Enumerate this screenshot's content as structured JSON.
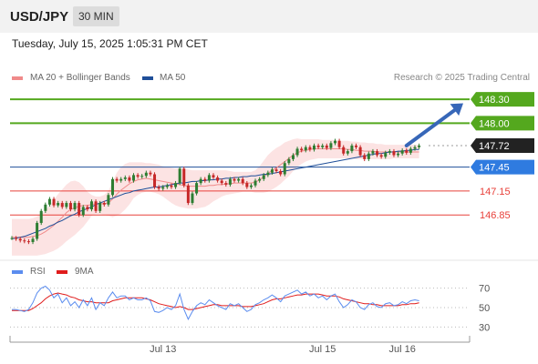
{
  "header": {
    "pair": "USD/JPY",
    "timeframe": "30 MIN"
  },
  "timestamp": "Tuesday, July 15, 2025 1:05:31 PM CET",
  "legend": {
    "ma20": "MA 20 + Bollinger Bands",
    "ma50": "MA 50",
    "credit": "Research © 2025 Trading Central"
  },
  "rsi_legend": {
    "rsi": "RSI",
    "ma9": "9MA"
  },
  "colors": {
    "target": "#54a81e",
    "pivot": "#2f7be0",
    "support": "#e8403a",
    "current": "#222222",
    "ma50": "#1f4f99",
    "ma20": "#f08a8a",
    "band": "#fcdede",
    "up": "#2e7d32",
    "down": "#c62828",
    "rsi": "#5b8def",
    "ma9": "#e01c1c",
    "arrow": "#3767b8"
  },
  "chart_data": [
    {
      "type": "candlestick",
      "y_range": [
        146.35,
        148.45
      ],
      "x_range": [
        0,
        101
      ],
      "x_ticks": [
        {
          "x": 36,
          "label": "Jul 13"
        },
        {
          "x": 74,
          "label": "Jul 15"
        },
        {
          "x": 93,
          "label": "Jul 16"
        }
      ],
      "levels": [
        {
          "value": 148.3,
          "label": "148.30",
          "kind": "target"
        },
        {
          "value": 148.0,
          "label": "148.00",
          "kind": "target"
        },
        {
          "value": 147.72,
          "label": "147.72",
          "kind": "current"
        },
        {
          "value": 147.45,
          "label": "147.45",
          "kind": "pivot"
        },
        {
          "value": 147.15,
          "label": "147.15",
          "kind": "support"
        },
        {
          "value": 146.85,
          "label": "146.85",
          "kind": "support"
        }
      ],
      "close": [
        146.56,
        146.55,
        146.53,
        146.52,
        146.51,
        146.55,
        146.75,
        146.9,
        146.98,
        147.05,
        146.97,
        147.0,
        146.95,
        147.0,
        146.92,
        147.0,
        146.85,
        146.95,
        146.92,
        147.02,
        146.9,
        147.0,
        146.98,
        147.1,
        147.3,
        147.28,
        147.3,
        147.32,
        147.28,
        147.35,
        147.33,
        147.34,
        147.38,
        147.36,
        147.2,
        147.18,
        147.2,
        147.22,
        147.2,
        147.25,
        147.43,
        147.22,
        147.0,
        147.12,
        147.25,
        147.3,
        147.28,
        147.35,
        147.32,
        147.28,
        147.25,
        147.23,
        147.3,
        147.28,
        147.3,
        147.25,
        147.2,
        147.22,
        147.28,
        147.3,
        147.35,
        147.38,
        147.42,
        147.4,
        147.36,
        147.5,
        147.55,
        147.6,
        147.68,
        147.66,
        147.7,
        147.67,
        147.72,
        147.7,
        147.72,
        147.69,
        147.75,
        147.78,
        147.7,
        147.62,
        147.65,
        147.72,
        147.7,
        147.6,
        147.55,
        147.62,
        147.65,
        147.6,
        147.58,
        147.63,
        147.65,
        147.6,
        147.62,
        147.66,
        147.63,
        147.68,
        147.7,
        147.72
      ],
      "bollinger_upper": [
        146.8,
        146.8,
        146.8,
        146.8,
        146.8,
        146.81,
        146.83,
        146.86,
        146.91,
        146.97,
        147.04,
        147.11,
        147.17,
        147.23,
        147.27,
        147.28,
        147.26,
        147.21,
        147.14,
        147.1,
        147.08,
        147.08,
        147.1,
        147.15,
        147.27,
        147.38,
        147.45,
        147.49,
        147.51,
        147.51,
        147.51,
        147.51,
        147.5,
        147.5,
        147.49,
        147.48,
        147.46,
        147.45,
        147.44,
        147.43,
        147.44,
        147.43,
        147.42,
        147.41,
        147.41,
        147.41,
        147.41,
        147.41,
        147.41,
        147.41,
        147.41,
        147.41,
        147.4,
        147.39,
        147.39,
        147.39,
        147.39,
        147.39,
        147.41,
        147.46,
        147.53,
        147.6,
        147.65,
        147.69,
        147.72,
        147.76,
        147.78,
        147.8,
        147.81,
        147.8,
        147.8,
        147.8,
        147.8,
        147.8,
        147.79,
        147.79,
        147.79,
        147.79,
        147.78,
        147.78,
        147.78,
        147.77,
        147.77,
        147.76,
        147.76,
        147.75,
        147.75,
        147.74,
        147.74,
        147.73,
        147.73,
        147.73,
        147.73,
        147.73,
        147.73,
        147.73,
        147.73,
        147.73
      ],
      "bollinger_lower": [
        146.34,
        146.34,
        146.34,
        146.34,
        146.34,
        146.34,
        146.34,
        146.35,
        146.36,
        146.38,
        146.4,
        146.43,
        146.47,
        146.52,
        146.56,
        146.6,
        146.65,
        146.7,
        146.77,
        146.84,
        146.86,
        146.86,
        146.85,
        146.84,
        146.82,
        146.84,
        146.87,
        146.92,
        146.98,
        147.06,
        147.1,
        147.13,
        147.14,
        147.14,
        147.13,
        147.11,
        147.08,
        147.04,
        147.0,
        146.97,
        146.95,
        146.94,
        146.93,
        146.93,
        146.93,
        146.94,
        146.95,
        146.98,
        147.02,
        147.05,
        147.08,
        147.1,
        147.11,
        147.12,
        147.13,
        147.14,
        147.14,
        147.14,
        147.13,
        147.13,
        147.13,
        147.14,
        147.17,
        147.2,
        147.24,
        147.29,
        147.34,
        147.4,
        147.45,
        147.49,
        147.52,
        147.54,
        147.55,
        147.56,
        147.56,
        147.56,
        147.56,
        147.56,
        147.56,
        147.56,
        147.56,
        147.56,
        147.55,
        147.55,
        147.55,
        147.55,
        147.55,
        147.55,
        147.55,
        147.55,
        147.55,
        147.56,
        147.56,
        147.56,
        147.56,
        147.56,
        147.56,
        147.56
      ],
      "ma20": [
        146.57,
        146.57,
        146.57,
        146.57,
        146.57,
        146.58,
        146.59,
        146.61,
        146.64,
        146.68,
        146.72,
        146.77,
        146.82,
        146.88,
        146.92,
        146.94,
        146.96,
        146.97,
        146.97,
        146.98,
        146.99,
        146.99,
        146.99,
        147.0,
        147.05,
        147.11,
        147.16,
        147.2,
        147.24,
        147.27,
        147.29,
        147.3,
        147.31,
        147.3,
        147.29,
        147.28,
        147.27,
        147.26,
        147.25,
        147.24,
        147.23,
        147.22,
        147.21,
        147.21,
        147.21,
        147.21,
        147.21,
        147.22,
        147.22,
        147.23,
        147.23,
        147.24,
        147.24,
        147.25,
        147.25,
        147.25,
        147.25,
        147.25,
        147.26,
        147.29,
        147.33,
        147.37,
        147.41,
        147.44,
        147.48,
        147.52,
        147.56,
        147.6,
        147.63,
        147.65,
        147.66,
        147.67,
        147.68,
        147.68,
        147.68,
        147.68,
        147.68,
        147.68,
        147.68,
        147.68,
        147.67,
        147.67,
        147.66,
        147.66,
        147.65,
        147.65,
        147.65,
        147.64,
        147.64,
        147.64,
        147.64,
        147.64,
        147.64,
        147.64,
        147.64,
        147.64,
        147.64,
        147.64
      ],
      "ma50": [
        146.55,
        146.56,
        146.57,
        146.58,
        146.6,
        146.62,
        146.64,
        146.66,
        146.68,
        146.71,
        146.73,
        146.76,
        146.78,
        146.81,
        146.84,
        146.86,
        146.89,
        146.91,
        146.93,
        146.95,
        146.98,
        147.0,
        147.02,
        147.04,
        147.06,
        147.08,
        147.1,
        147.12,
        147.13,
        147.15,
        147.16,
        147.17,
        147.18,
        147.19,
        147.2,
        147.2,
        147.21,
        147.22,
        147.23,
        147.24,
        147.25,
        147.25,
        147.26,
        147.27,
        147.27,
        147.28,
        147.28,
        147.29,
        147.29,
        147.3,
        147.3,
        147.31,
        147.31,
        147.32,
        147.32,
        147.33,
        147.33,
        147.34,
        147.34,
        147.35,
        147.36,
        147.36,
        147.37,
        147.38,
        147.39,
        147.4,
        147.41,
        147.42,
        147.43,
        147.44,
        147.45,
        147.46,
        147.47,
        147.48,
        147.49,
        147.5,
        147.51,
        147.52,
        147.53,
        147.54,
        147.55,
        147.56,
        147.57,
        147.58,
        147.59,
        147.6,
        147.61,
        147.62,
        147.62,
        147.63,
        147.64,
        147.64,
        147.65,
        147.65,
        147.66,
        147.66,
        147.67,
        147.67
      ],
      "arrow": {
        "from": [
          94,
          147.72
        ],
        "to": [
          101,
          148.25
        ]
      }
    },
    {
      "type": "line",
      "title": "RSI",
      "y_range": [
        20,
        80
      ],
      "y_ticks": [
        70,
        50,
        30
      ],
      "series": [
        {
          "name": "RSI",
          "values": [
            48,
            48,
            47,
            46,
            48,
            55,
            65,
            70,
            72,
            68,
            60,
            64,
            55,
            60,
            52,
            56,
            50,
            58,
            52,
            60,
            48,
            55,
            52,
            60,
            66,
            60,
            62,
            62,
            58,
            60,
            58,
            58,
            60,
            57,
            46,
            45,
            47,
            50,
            48,
            52,
            64,
            48,
            38,
            46,
            52,
            55,
            53,
            58,
            55,
            52,
            50,
            48,
            54,
            52,
            54,
            50,
            46,
            48,
            53,
            55,
            58,
            60,
            63,
            60,
            56,
            62,
            64,
            66,
            68,
            64,
            66,
            62,
            64,
            60,
            62,
            58,
            62,
            64,
            56,
            50,
            53,
            58,
            56,
            50,
            48,
            53,
            55,
            51,
            50,
            54,
            55,
            52,
            53,
            56,
            54,
            57,
            58,
            57
          ]
        },
        {
          "name": "9MA",
          "values": [
            47,
            47,
            47,
            47,
            47,
            49,
            52,
            55,
            59,
            62,
            64,
            65,
            64,
            63,
            61,
            60,
            58,
            57,
            56,
            56,
            55,
            55,
            55,
            55,
            57,
            58,
            59,
            60,
            60,
            60,
            60,
            60,
            59,
            58,
            56,
            54,
            53,
            52,
            51,
            50,
            51,
            50,
            48,
            48,
            49,
            50,
            51,
            52,
            53,
            53,
            52,
            52,
            52,
            52,
            52,
            51,
            51,
            51,
            52,
            53,
            54,
            56,
            58,
            59,
            59,
            60,
            61,
            62,
            63,
            63,
            64,
            64,
            64,
            64,
            63,
            62,
            62,
            62,
            61,
            59,
            58,
            57,
            56,
            55,
            54,
            54,
            53,
            53,
            52,
            52,
            52,
            52,
            52,
            53,
            53,
            54,
            54,
            55
          ]
        }
      ]
    }
  ]
}
